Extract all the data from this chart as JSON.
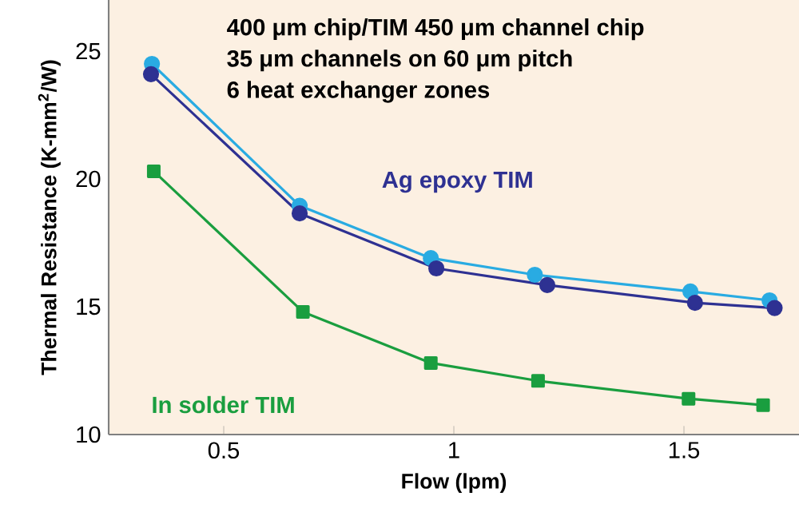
{
  "chart_data": {
    "type": "line",
    "xlabel": "Flow (lpm)",
    "ylabel": "Thermal Resistance (K-mm$^{2}$/W)",
    "annotations": [
      "400 μm chip/TIM 450 μm channel chip",
      "35 μm channels on 60 μm pitch",
      "6 heat exchanger zones"
    ],
    "xlim": [
      0.25,
      1.75
    ],
    "ylim": [
      10,
      27
    ],
    "xticks": [
      0.5,
      1,
      1.5
    ],
    "yticks": [
      10,
      15,
      20,
      25
    ],
    "series": [
      {
        "color": "#29abe2",
        "marker": "circle",
        "x": [
          0.344,
          0.665,
          0.95,
          1.176,
          1.514,
          1.686
        ],
        "values": [
          24.5,
          18.95,
          16.9,
          16.25,
          15.6,
          15.25
        ]
      },
      {
        "name": "Ag epoxy TIM",
        "color": "#2e3192",
        "marker": "circle",
        "x": [
          0.342,
          0.665,
          0.962,
          1.203,
          1.524,
          1.697
        ],
        "values": [
          24.1,
          18.65,
          16.5,
          15.85,
          15.15,
          14.95
        ]
      },
      {
        "name": "In solder TIM",
        "color": "#1a9e3f",
        "marker": "square",
        "x": [
          0.348,
          0.672,
          0.95,
          1.183,
          1.51,
          1.672
        ],
        "values": [
          20.3,
          14.8,
          12.8,
          12.1,
          11.4,
          11.15
        ]
      }
    ]
  }
}
